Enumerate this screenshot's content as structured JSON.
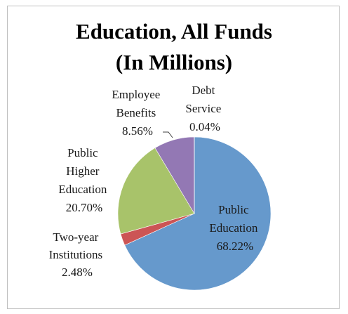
{
  "chart_data": {
    "type": "pie",
    "title_lines": [
      "Education, All Funds",
      "(In Millions)"
    ],
    "slices": [
      {
        "label_lines": [
          "Public",
          "Education"
        ],
        "pct_label": "68.22%",
        "value": 68.22,
        "color": "#6699cc"
      },
      {
        "label_lines": [
          "Two-year",
          "Institutions"
        ],
        "pct_label": "2.48%",
        "value": 2.48,
        "color": "#cc5555"
      },
      {
        "label_lines": [
          "Public",
          "Higher",
          "Education"
        ],
        "pct_label": "20.70%",
        "value": 20.7,
        "color": "#a8c36a"
      },
      {
        "label_lines": [
          "Employee",
          "Benefits"
        ],
        "pct_label": "8.56%",
        "value": 8.56,
        "color": "#9378b4"
      },
      {
        "label_lines": [
          "Debt",
          "Service"
        ],
        "pct_label": "0.04%",
        "value": 0.04,
        "color": "#4bacc6"
      }
    ]
  }
}
